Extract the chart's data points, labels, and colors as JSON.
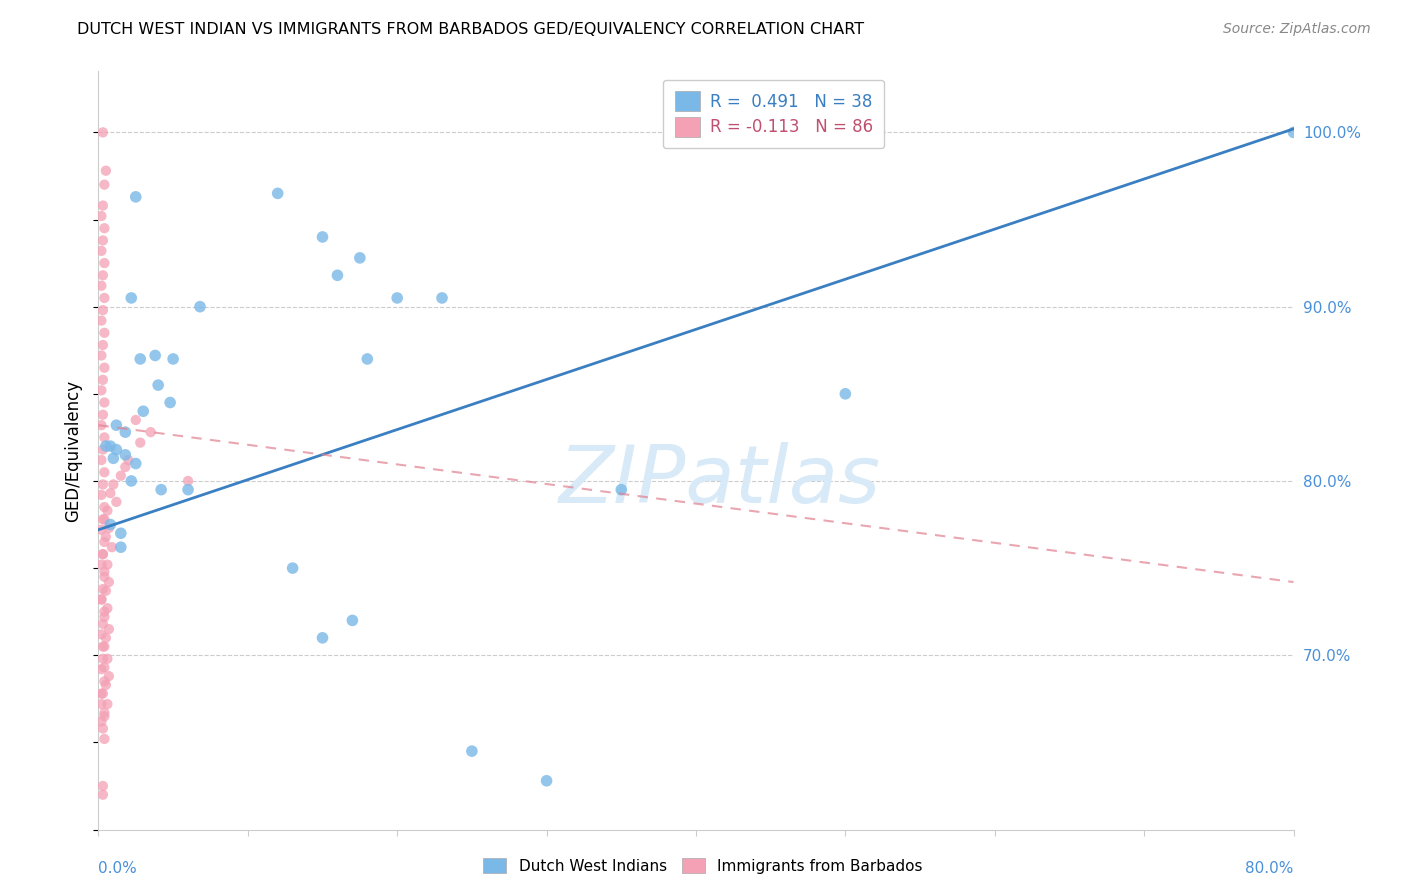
{
  "title": "DUTCH WEST INDIAN VS IMMIGRANTS FROM BARBADOS GED/EQUIVALENCY CORRELATION CHART",
  "source": "Source: ZipAtlas.com",
  "ylabel": "GED/Equivalency",
  "y_ticks": [
    0.7,
    0.8,
    0.9,
    1.0
  ],
  "y_tick_labels": [
    "70.0%",
    "80.0%",
    "90.0%",
    "100.0%"
  ],
  "x_min": 0.0,
  "x_max": 0.8,
  "y_min": 0.6,
  "y_max": 1.035,
  "watermark_text": "ZIPatlas",
  "legend_blue_label": "R =  0.491   N = 38",
  "legend_pink_label": "R = -0.113   N = 86",
  "blue_color": "#7ab8e8",
  "pink_color": "#f4a0b5",
  "blue_line_color": "#3a7fc1",
  "pink_line_color": "#e08090",
  "blue_scatter": [
    [
      0.025,
      0.963
    ],
    [
      0.12,
      0.965
    ],
    [
      0.15,
      0.94
    ],
    [
      0.16,
      0.918
    ],
    [
      0.175,
      0.928
    ],
    [
      0.2,
      0.905
    ],
    [
      0.23,
      0.905
    ],
    [
      0.028,
      0.87
    ],
    [
      0.038,
      0.872
    ],
    [
      0.05,
      0.87
    ],
    [
      0.18,
      0.87
    ],
    [
      0.022,
      0.905
    ],
    [
      0.068,
      0.9
    ],
    [
      0.04,
      0.855
    ],
    [
      0.048,
      0.845
    ],
    [
      0.03,
      0.84
    ],
    [
      0.012,
      0.832
    ],
    [
      0.018,
      0.828
    ],
    [
      0.025,
      0.81
    ],
    [
      0.005,
      0.82
    ],
    [
      0.008,
      0.82
    ],
    [
      0.012,
      0.818
    ],
    [
      0.01,
      0.813
    ],
    [
      0.018,
      0.815
    ],
    [
      0.022,
      0.8
    ],
    [
      0.06,
      0.795
    ],
    [
      0.042,
      0.795
    ],
    [
      0.008,
      0.775
    ],
    [
      0.015,
      0.77
    ],
    [
      0.015,
      0.762
    ],
    [
      0.35,
      0.795
    ],
    [
      0.13,
      0.75
    ],
    [
      0.17,
      0.72
    ],
    [
      0.15,
      0.71
    ],
    [
      0.5,
      0.85
    ],
    [
      0.8,
      1.0
    ],
    [
      0.25,
      0.645
    ],
    [
      0.3,
      0.628
    ]
  ],
  "pink_scatter": [
    [
      0.003,
      1.0
    ],
    [
      0.005,
      0.978
    ],
    [
      0.004,
      0.97
    ],
    [
      0.003,
      0.958
    ],
    [
      0.002,
      0.952
    ],
    [
      0.004,
      0.945
    ],
    [
      0.003,
      0.938
    ],
    [
      0.002,
      0.932
    ],
    [
      0.004,
      0.925
    ],
    [
      0.003,
      0.918
    ],
    [
      0.002,
      0.912
    ],
    [
      0.004,
      0.905
    ],
    [
      0.003,
      0.898
    ],
    [
      0.002,
      0.892
    ],
    [
      0.004,
      0.885
    ],
    [
      0.003,
      0.878
    ],
    [
      0.002,
      0.872
    ],
    [
      0.004,
      0.865
    ],
    [
      0.003,
      0.858
    ],
    [
      0.002,
      0.852
    ],
    [
      0.004,
      0.845
    ],
    [
      0.003,
      0.838
    ],
    [
      0.002,
      0.832
    ],
    [
      0.004,
      0.825
    ],
    [
      0.003,
      0.818
    ],
    [
      0.002,
      0.812
    ],
    [
      0.004,
      0.805
    ],
    [
      0.003,
      0.798
    ],
    [
      0.002,
      0.792
    ],
    [
      0.004,
      0.785
    ],
    [
      0.003,
      0.778
    ],
    [
      0.002,
      0.772
    ],
    [
      0.004,
      0.765
    ],
    [
      0.003,
      0.758
    ],
    [
      0.002,
      0.752
    ],
    [
      0.004,
      0.745
    ],
    [
      0.003,
      0.738
    ],
    [
      0.002,
      0.732
    ],
    [
      0.004,
      0.725
    ],
    [
      0.003,
      0.718
    ],
    [
      0.002,
      0.712
    ],
    [
      0.004,
      0.705
    ],
    [
      0.003,
      0.698
    ],
    [
      0.002,
      0.692
    ],
    [
      0.004,
      0.685
    ],
    [
      0.003,
      0.678
    ],
    [
      0.002,
      0.672
    ],
    [
      0.004,
      0.665
    ],
    [
      0.003,
      0.658
    ],
    [
      0.004,
      0.652
    ],
    [
      0.003,
      0.625
    ],
    [
      0.025,
      0.835
    ],
    [
      0.035,
      0.828
    ],
    [
      0.028,
      0.822
    ],
    [
      0.06,
      0.8
    ],
    [
      0.02,
      0.812
    ],
    [
      0.018,
      0.808
    ],
    [
      0.015,
      0.803
    ],
    [
      0.01,
      0.798
    ],
    [
      0.008,
      0.793
    ],
    [
      0.012,
      0.788
    ],
    [
      0.006,
      0.783
    ],
    [
      0.004,
      0.778
    ],
    [
      0.007,
      0.773
    ],
    [
      0.005,
      0.768
    ],
    [
      0.009,
      0.762
    ],
    [
      0.003,
      0.758
    ],
    [
      0.006,
      0.752
    ],
    [
      0.004,
      0.748
    ],
    [
      0.007,
      0.742
    ],
    [
      0.005,
      0.737
    ],
    [
      0.002,
      0.732
    ],
    [
      0.006,
      0.727
    ],
    [
      0.004,
      0.722
    ],
    [
      0.007,
      0.715
    ],
    [
      0.005,
      0.71
    ],
    [
      0.003,
      0.705
    ],
    [
      0.006,
      0.698
    ],
    [
      0.004,
      0.693
    ],
    [
      0.007,
      0.688
    ],
    [
      0.005,
      0.683
    ],
    [
      0.002,
      0.678
    ],
    [
      0.006,
      0.672
    ],
    [
      0.004,
      0.667
    ],
    [
      0.002,
      0.662
    ],
    [
      0.003,
      0.62
    ]
  ],
  "blue_line_x": [
    0.0,
    0.8
  ],
  "blue_line_y": [
    0.772,
    1.002
  ],
  "pink_line_x": [
    0.0,
    0.8
  ],
  "pink_line_y": [
    0.832,
    0.742
  ]
}
